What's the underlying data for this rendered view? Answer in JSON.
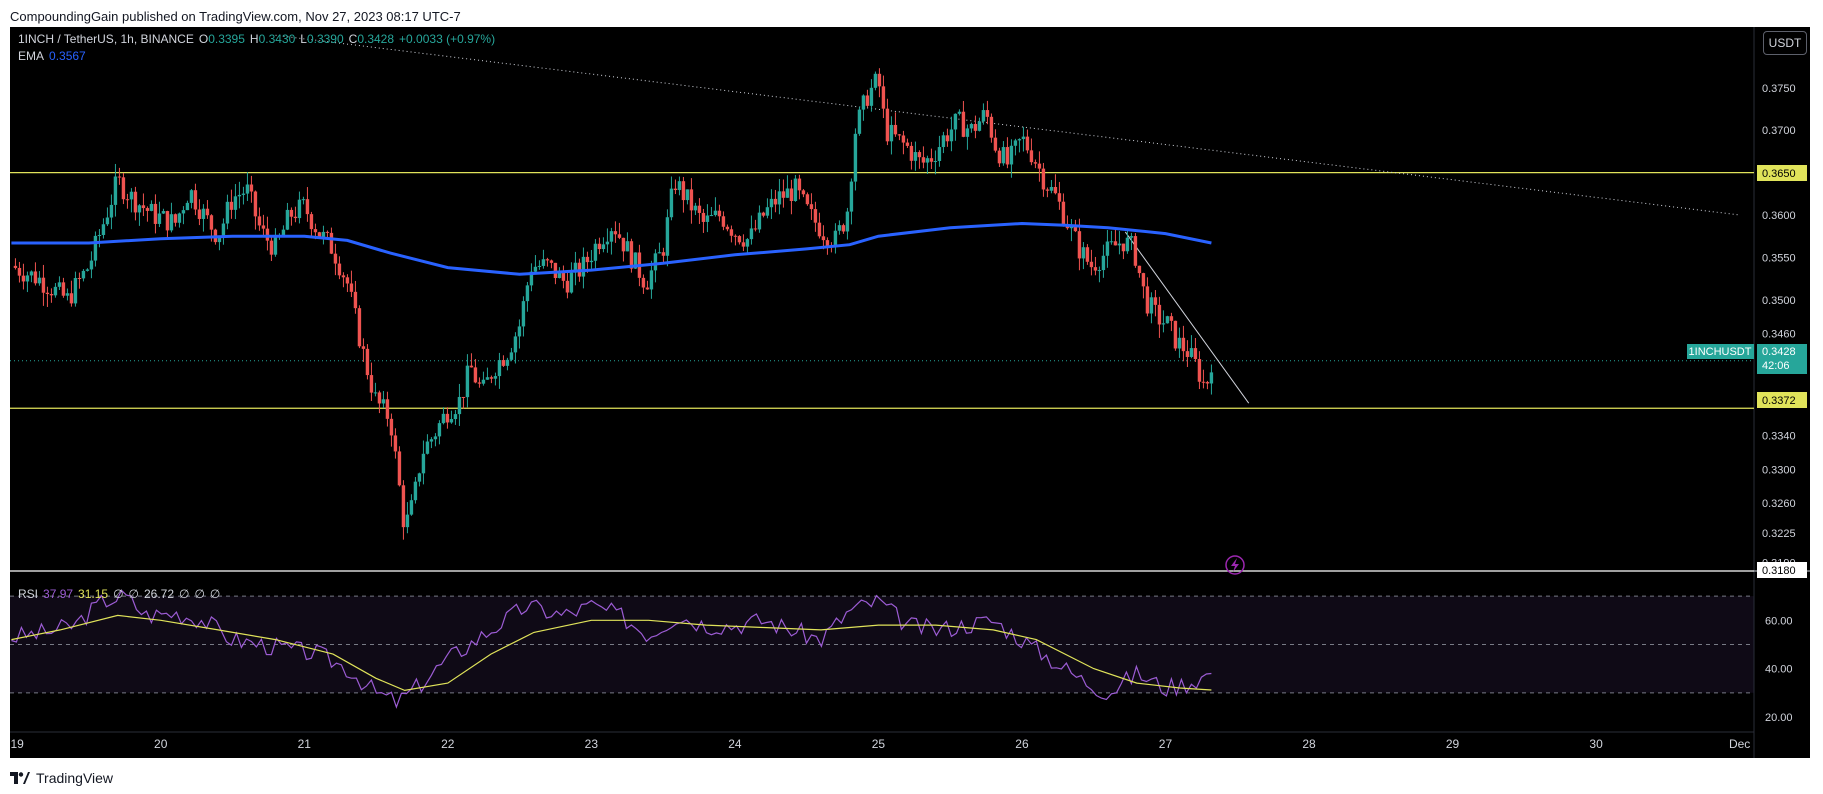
{
  "header": {
    "published_text": "CompoundingGain published on TradingView.com, Nov 27, 2023 08:17 UTC-7"
  },
  "footer": {
    "brand": "TradingView"
  },
  "toolbar": {
    "currency_button": "USDT"
  },
  "legend": {
    "symbol": "1INCH / TetherUS, 1h, BINANCE",
    "open_label": "O",
    "open": "0.3395",
    "high_label": "H",
    "high": "0.3430",
    "low_label": "L",
    "low": "0.3390",
    "close_label": "C",
    "close": "0.3428",
    "change": "+0.0033 (+0.97%)",
    "ema_label": "EMA",
    "ema_value": "0.3567"
  },
  "rsi_legend": {
    "label": "RSI",
    "value1": "37.97",
    "value2": "31.15",
    "sym1": "∅",
    "sym2": "∅",
    "value3": "26.72",
    "sym3": "∅",
    "sym4": "∅",
    "sym5": "∅"
  },
  "price_labels": {
    "symbol_tag": "1INCHUSDT",
    "current_price": "0.3428",
    "countdown": "42:06",
    "level_upper": "0.3650",
    "level_lower": "0.3372",
    "level_bottom": "0.3180"
  },
  "colors": {
    "up": "#26a69a",
    "down": "#ef5350",
    "ema": "#2962ff",
    "rsi": "#9c5cd4",
    "rsi_ma": "#e0e35a",
    "level": "#e0e35a"
  },
  "chart_data": {
    "type": "candlestick",
    "symbol": "1INCHUSDT",
    "interval": "1h",
    "ylim": [
      0.318,
      0.381
    ],
    "y_ticks": [
      "0.3750",
      "0.3700",
      "0.3600",
      "0.3550",
      "0.3500",
      "0.3460",
      "0.3340",
      "0.3300",
      "0.3260",
      "0.3225",
      "0.3190"
    ],
    "x_ticks": [
      {
        "label": "19",
        "day": 19
      },
      {
        "label": "20",
        "day": 20
      },
      {
        "label": "21",
        "day": 21
      },
      {
        "label": "22",
        "day": 22
      },
      {
        "label": "23",
        "day": 23
      },
      {
        "label": "24",
        "day": 24
      },
      {
        "label": "25",
        "day": 25
      },
      {
        "label": "26",
        "day": 26
      },
      {
        "label": "27",
        "day": 27
      },
      {
        "label": "28",
        "day": 28
      },
      {
        "label": "29",
        "day": 29
      },
      {
        "label": "30",
        "day": 30
      },
      {
        "label": "Dec",
        "day": 31
      }
    ],
    "xlim_days": [
      18.95,
      31.1
    ],
    "horizontal_levels": [
      0.365,
      0.3372,
      0.318
    ],
    "current_price": 0.3428,
    "trendlines": [
      {
        "from": [
          20.8,
          0.3812
        ],
        "to": [
          31.0,
          0.36
        ],
        "style": "dotted"
      },
      {
        "from": [
          26.72,
          0.358
        ],
        "to": [
          27.58,
          0.3378
        ],
        "style": "solid"
      }
    ],
    "close_path": [
      [
        18.96,
        0.354
      ],
      [
        19.15,
        0.3525
      ],
      [
        19.35,
        0.35
      ],
      [
        19.5,
        0.354
      ],
      [
        19.62,
        0.36
      ],
      [
        19.7,
        0.364
      ],
      [
        19.8,
        0.362
      ],
      [
        19.95,
        0.36
      ],
      [
        20.1,
        0.359
      ],
      [
        20.2,
        0.363
      ],
      [
        20.3,
        0.36
      ],
      [
        20.4,
        0.3575
      ],
      [
        20.5,
        0.362
      ],
      [
        20.6,
        0.363
      ],
      [
        20.7,
        0.358
      ],
      [
        20.8,
        0.356
      ],
      [
        20.9,
        0.36
      ],
      [
        21.0,
        0.361
      ],
      [
        21.1,
        0.358
      ],
      [
        21.2,
        0.356
      ],
      [
        21.3,
        0.352
      ],
      [
        21.42,
        0.343
      ],
      [
        21.5,
        0.338
      ],
      [
        21.6,
        0.336
      ],
      [
        21.7,
        0.323
      ],
      [
        21.76,
        0.326
      ],
      [
        21.82,
        0.332
      ],
      [
        21.9,
        0.334
      ],
      [
        22.0,
        0.337
      ],
      [
        22.08,
        0.338
      ],
      [
        22.16,
        0.342
      ],
      [
        22.24,
        0.339
      ],
      [
        22.32,
        0.342
      ],
      [
        22.42,
        0.344
      ],
      [
        22.5,
        0.347
      ],
      [
        22.58,
        0.354
      ],
      [
        22.7,
        0.354
      ],
      [
        22.82,
        0.352
      ],
      [
        22.95,
        0.354
      ],
      [
        23.05,
        0.357
      ],
      [
        23.15,
        0.359
      ],
      [
        23.28,
        0.355
      ],
      [
        23.38,
        0.352
      ],
      [
        23.5,
        0.356
      ],
      [
        23.58,
        0.364
      ],
      [
        23.66,
        0.362
      ],
      [
        23.78,
        0.359
      ],
      [
        23.9,
        0.36
      ],
      [
        24.0,
        0.358
      ],
      [
        24.1,
        0.357
      ],
      [
        24.2,
        0.36
      ],
      [
        24.3,
        0.362
      ],
      [
        24.42,
        0.363
      ],
      [
        24.52,
        0.36
      ],
      [
        24.62,
        0.358
      ],
      [
        24.7,
        0.357
      ],
      [
        24.78,
        0.36
      ],
      [
        24.84,
        0.37
      ],
      [
        24.92,
        0.374
      ],
      [
        25.0,
        0.376
      ],
      [
        25.05,
        0.37
      ],
      [
        25.12,
        0.369
      ],
      [
        25.2,
        0.368
      ],
      [
        25.3,
        0.366
      ],
      [
        25.38,
        0.367
      ],
      [
        25.45,
        0.369
      ],
      [
        25.55,
        0.371
      ],
      [
        25.65,
        0.37
      ],
      [
        25.75,
        0.372
      ],
      [
        25.82,
        0.368
      ],
      [
        25.9,
        0.366
      ],
      [
        26.0,
        0.369
      ],
      [
        26.08,
        0.367
      ],
      [
        26.16,
        0.364
      ],
      [
        26.24,
        0.362
      ],
      [
        26.32,
        0.359
      ],
      [
        26.4,
        0.356
      ],
      [
        26.48,
        0.354
      ],
      [
        26.55,
        0.355
      ],
      [
        26.62,
        0.356
      ],
      [
        26.7,
        0.357
      ],
      [
        26.78,
        0.356
      ],
      [
        26.86,
        0.35
      ],
      [
        26.94,
        0.348
      ],
      [
        27.02,
        0.347
      ],
      [
        27.08,
        0.345
      ],
      [
        27.15,
        0.344
      ],
      [
        27.22,
        0.342
      ],
      [
        27.28,
        0.3395
      ],
      [
        27.32,
        0.3428
      ]
    ],
    "ema_path": [
      [
        18.96,
        0.3567
      ],
      [
        19.5,
        0.3567
      ],
      [
        20.0,
        0.3572
      ],
      [
        20.5,
        0.3575
      ],
      [
        21.0,
        0.3575
      ],
      [
        21.3,
        0.357
      ],
      [
        21.6,
        0.3555
      ],
      [
        22.0,
        0.3538
      ],
      [
        22.5,
        0.353
      ],
      [
        23.0,
        0.3535
      ],
      [
        23.5,
        0.3543
      ],
      [
        24.0,
        0.3553
      ],
      [
        24.5,
        0.356
      ],
      [
        24.8,
        0.3565
      ],
      [
        25.0,
        0.3575
      ],
      [
        25.5,
        0.3585
      ],
      [
        26.0,
        0.359
      ],
      [
        26.3,
        0.3588
      ],
      [
        26.6,
        0.3585
      ],
      [
        27.0,
        0.3578
      ],
      [
        27.32,
        0.3567
      ]
    ],
    "rsi_ylim": [
      20,
      75
    ],
    "rsi_ticks": [
      60,
      40,
      20
    ],
    "rsi_bands": [
      70,
      50,
      30
    ],
    "rsi_path": [
      [
        18.96,
        53
      ],
      [
        19.2,
        55
      ],
      [
        19.4,
        58
      ],
      [
        19.6,
        68
      ],
      [
        19.75,
        70
      ],
      [
        19.9,
        62
      ],
      [
        20.1,
        63
      ],
      [
        20.3,
        60
      ],
      [
        20.5,
        52
      ],
      [
        20.7,
        50
      ],
      [
        20.9,
        48
      ],
      [
        21.1,
        46
      ],
      [
        21.3,
        40
      ],
      [
        21.5,
        30
      ],
      [
        21.65,
        26
      ],
      [
        21.8,
        33
      ],
      [
        22.0,
        44
      ],
      [
        22.2,
        52
      ],
      [
        22.4,
        60
      ],
      [
        22.55,
        66
      ],
      [
        22.8,
        62
      ],
      [
        23.0,
        66
      ],
      [
        23.2,
        62
      ],
      [
        23.4,
        54
      ],
      [
        23.6,
        62
      ],
      [
        23.8,
        58
      ],
      [
        24.0,
        58
      ],
      [
        24.2,
        60
      ],
      [
        24.4,
        56
      ],
      [
        24.6,
        52
      ],
      [
        24.8,
        64
      ],
      [
        25.0,
        68
      ],
      [
        25.2,
        58
      ],
      [
        25.4,
        56
      ],
      [
        25.6,
        58
      ],
      [
        25.8,
        60
      ],
      [
        26.0,
        52
      ],
      [
        26.2,
        44
      ],
      [
        26.4,
        36
      ],
      [
        26.6,
        30
      ],
      [
        26.8,
        38
      ],
      [
        27.0,
        32
      ],
      [
        27.15,
        34
      ],
      [
        27.32,
        38
      ]
    ],
    "rsi_ma_path": [
      [
        18.96,
        52
      ],
      [
        19.3,
        56
      ],
      [
        19.7,
        62
      ],
      [
        20.0,
        60
      ],
      [
        20.4,
        56
      ],
      [
        20.8,
        52
      ],
      [
        21.2,
        46
      ],
      [
        21.5,
        36
      ],
      [
        21.7,
        31
      ],
      [
        22.0,
        34
      ],
      [
        22.3,
        46
      ],
      [
        22.6,
        55
      ],
      [
        23.0,
        60
      ],
      [
        23.4,
        60
      ],
      [
        23.8,
        58
      ],
      [
        24.2,
        57
      ],
      [
        24.6,
        56
      ],
      [
        25.0,
        58
      ],
      [
        25.4,
        58
      ],
      [
        25.8,
        56
      ],
      [
        26.1,
        52
      ],
      [
        26.5,
        40
      ],
      [
        26.8,
        34
      ],
      [
        27.1,
        32
      ],
      [
        27.32,
        31.15
      ]
    ]
  }
}
